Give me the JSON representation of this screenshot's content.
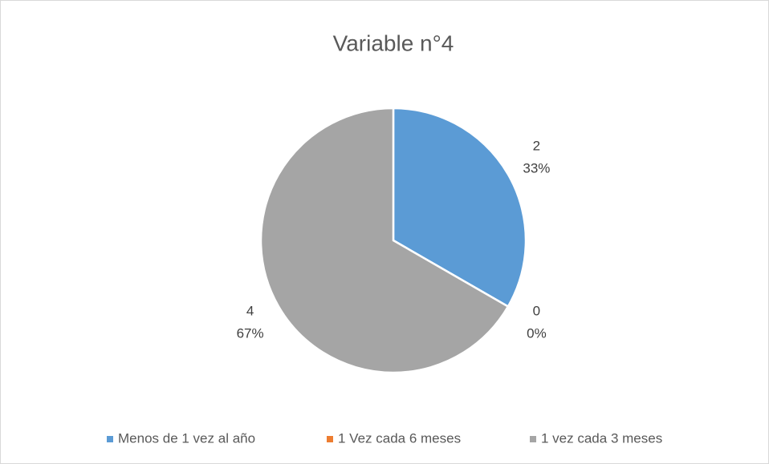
{
  "chart_data": {
    "type": "pie",
    "title": "Variable n°4",
    "categories": [
      "Menos de 1 vez al año",
      "1 Vez cada 6 meses",
      "1 vez cada 3 meses"
    ],
    "values": [
      2,
      0,
      4
    ],
    "percent_labels": [
      "33%",
      "0%",
      "67%"
    ],
    "colors": [
      "#5b9bd5",
      "#ed7d31",
      "#a5a5a5"
    ],
    "legend": "bottom"
  }
}
